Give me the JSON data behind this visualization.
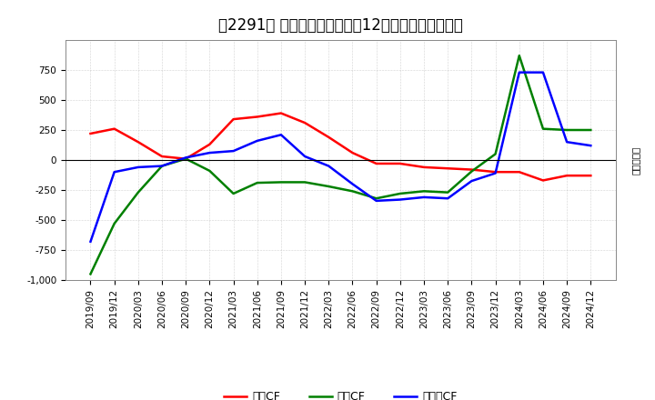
{
  "title": "［2291］ キャッシュフローの12か月移動合計の推移",
  "ylabel": "（百万円）",
  "xlabels": [
    "2019/09",
    "2019/12",
    "2020/03",
    "2020/06",
    "2020/09",
    "2020/12",
    "2021/03",
    "2021/06",
    "2021/09",
    "2021/12",
    "2022/03",
    "2022/06",
    "2022/09",
    "2022/12",
    "2023/03",
    "2023/06",
    "2023/09",
    "2023/12",
    "2024/03",
    "2024/06",
    "2024/09",
    "2024/12"
  ],
  "eigyo_cf": [
    220,
    260,
    150,
    30,
    10,
    130,
    340,
    360,
    390,
    310,
    190,
    60,
    -30,
    -30,
    -60,
    -70,
    -80,
    -100,
    -100,
    -170,
    -130,
    -130
  ],
  "toshi_cf": [
    -950,
    -530,
    -270,
    -50,
    10,
    -90,
    -280,
    -190,
    -185,
    -185,
    -220,
    -260,
    -320,
    -280,
    -260,
    -270,
    -95,
    50,
    870,
    260,
    250,
    250
  ],
  "free_cf": [
    -680,
    -100,
    -60,
    -50,
    20,
    60,
    75,
    160,
    210,
    30,
    -50,
    -200,
    -340,
    -330,
    -310,
    -320,
    -175,
    -110,
    730,
    730,
    150,
    120
  ],
  "eigyo_label": "営業CF",
  "toshi_label": "投資CF",
  "free_label": "フリーCF",
  "eigyo_color": "#ff0000",
  "toshi_color": "#008000",
  "free_color": "#0000ff",
  "ylim": [
    -1000,
    1000
  ],
  "yticks": [
    -1000,
    -750,
    -500,
    -250,
    0,
    250,
    500,
    750
  ],
  "bg_color": "#ffffff",
  "grid_color": "#999999",
  "title_fontsize": 12,
  "legend_fontsize": 9,
  "axis_fontsize": 7.5
}
